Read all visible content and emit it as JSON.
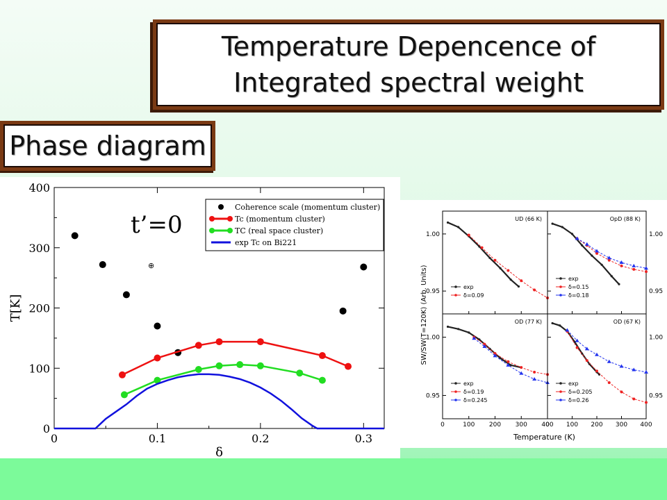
{
  "slide": {
    "title_line1": "Temperature Depencence of",
    "title_line2": "Integrated spectral weight",
    "phase_label": "Phase diagram"
  },
  "chart_data": [
    {
      "type": "scatter",
      "annotation": "t’=0",
      "xlabel": "δ",
      "ylabel": "T[K]",
      "xlim": [
        0,
        0.32
      ],
      "ylim": [
        0,
        400
      ],
      "xticks": [
        "0",
        "0.1",
        "0.2",
        "0.3"
      ],
      "xtick_values": [
        0,
        0.1,
        0.2,
        0.3
      ],
      "yticks": [
        "0",
        "100",
        "200",
        "300",
        "400"
      ],
      "ytick_values": [
        0,
        100,
        200,
        300,
        400
      ],
      "legend_position": "top-right",
      "series": [
        {
          "name": "Coherence scale (momentum cluster)",
          "style": "points",
          "color": "#000000",
          "x": [
            0.02,
            0.047,
            0.07,
            0.1,
            0.12,
            0.28,
            0.3
          ],
          "y": [
            320,
            272,
            222,
            170,
            126,
            195,
            268
          ]
        },
        {
          "name": "Tc (momentum cluster)",
          "style": "line-points",
          "color": "#ee1111",
          "x": [
            0.066,
            0.1,
            0.14,
            0.16,
            0.2,
            0.26,
            0.285
          ],
          "y": [
            89,
            117,
            138,
            144,
            144,
            121,
            103
          ]
        },
        {
          "name": "TC (real space cluster)",
          "style": "line-points",
          "color": "#22dd22",
          "x": [
            0.068,
            0.1,
            0.14,
            0.16,
            0.18,
            0.2,
            0.238,
            0.26
          ],
          "y": [
            56,
            80,
            98,
            104,
            106,
            104,
            92,
            80
          ]
        },
        {
          "name": "exp Tc on Bi221",
          "style": "line",
          "color": "#1111dd",
          "x": [
            0,
            0.04,
            0.045,
            0.05,
            0.06,
            0.07,
            0.08,
            0.09,
            0.1,
            0.11,
            0.12,
            0.13,
            0.14,
            0.15,
            0.16,
            0.17,
            0.18,
            0.19,
            0.2,
            0.21,
            0.22,
            0.23,
            0.24,
            0.25,
            0.255,
            0.26,
            0.32
          ],
          "y": [
            0,
            0,
            8,
            16,
            28,
            40,
            54,
            66,
            74,
            80,
            85,
            88,
            90,
            90,
            89,
            86,
            82,
            76,
            68,
            58,
            46,
            32,
            17,
            5,
            0,
            0,
            0
          ]
        }
      ]
    },
    {
      "type": "line",
      "ylabel": "SW/SW(T=120K) (Arb. Units)",
      "xlabel": "Temperature (K)",
      "xlim": [
        0,
        400
      ],
      "ylim": [
        0.93,
        1.02
      ],
      "xticks": [
        "0",
        "100",
        "200",
        "300",
        "400"
      ],
      "xtick_values": [
        0,
        100,
        200,
        300,
        400
      ],
      "yticks": [
        "0.95",
        "1.00"
      ],
      "ytick_values": [
        0.95,
        1.0
      ],
      "panels": [
        {
          "title": "UD (66 K)",
          "legend": [
            "exp",
            "δ=0.09"
          ],
          "series": [
            {
              "name": "exp",
              "color": "#222222",
              "x": [
                20,
                60,
                100,
                140,
                180,
                220,
                260,
                290
              ],
              "y": [
                1.01,
                1.006,
                0.998,
                0.989,
                0.979,
                0.97,
                0.96,
                0.954
              ]
            },
            {
              "name": "δ=0.09",
              "color": "#ee2222",
              "x": [
                100,
                150,
                200,
                250,
                300,
                350,
                400
              ],
              "y": [
                0.999,
                0.988,
                0.977,
                0.968,
                0.959,
                0.951,
                0.944
              ]
            }
          ]
        },
        {
          "title": "OpD (88 K)",
          "legend": [
            "exp",
            "δ=0.15",
            "δ=0.18"
          ],
          "series": [
            {
              "name": "exp",
              "color": "#222222",
              "x": [
                20,
                60,
                100,
                140,
                180,
                220,
                260,
                290
              ],
              "y": [
                1.009,
                1.006,
                1.0,
                0.99,
                0.981,
                0.973,
                0.963,
                0.956
              ]
            },
            {
              "name": "δ=0.15",
              "color": "#ee2222",
              "x": [
                120,
                160,
                200,
                250,
                300,
                350,
                400
              ],
              "y": [
                0.996,
                0.99,
                0.983,
                0.977,
                0.972,
                0.969,
                0.967
              ]
            },
            {
              "name": "δ=0.18",
              "color": "#2233ee",
              "x": [
                120,
                160,
                200,
                250,
                300,
                350,
                400
              ],
              "y": [
                0.996,
                0.991,
                0.985,
                0.979,
                0.975,
                0.972,
                0.97
              ]
            }
          ]
        },
        {
          "title": "OD (77 K)",
          "legend": [
            "exp",
            "δ=0.19",
            "δ=0.245"
          ],
          "series": [
            {
              "name": "exp",
              "color": "#222222",
              "x": [
                20,
                60,
                100,
                140,
                180,
                220,
                260,
                300
              ],
              "y": [
                1.009,
                1.007,
                1.004,
                0.998,
                0.99,
                0.982,
                0.976,
                0.974
              ]
            },
            {
              "name": "δ=0.19",
              "color": "#ee2222",
              "x": [
                120,
                160,
                200,
                250,
                300,
                350,
                400
              ],
              "y": [
                1.0,
                0.994,
                0.986,
                0.979,
                0.974,
                0.97,
                0.968
              ]
            },
            {
              "name": "δ=0.245",
              "color": "#2233ee",
              "x": [
                120,
                160,
                200,
                250,
                300,
                350,
                400
              ],
              "y": [
                0.999,
                0.992,
                0.984,
                0.976,
                0.969,
                0.964,
                0.961
              ]
            }
          ]
        },
        {
          "title": "OD (67 K)",
          "legend": [
            "exp",
            "δ=0.205",
            "δ=0.26"
          ],
          "series": [
            {
              "name": "exp",
              "color": "#222222",
              "x": [
                20,
                50,
                80,
                110,
                140,
                170,
                200,
                210
              ],
              "y": [
                1.012,
                1.01,
                1.005,
                0.996,
                0.986,
                0.977,
                0.97,
                0.968
              ]
            },
            {
              "name": "δ=0.205",
              "color": "#ee2222",
              "x": [
                80,
                120,
                160,
                200,
                250,
                300,
                350,
                400
              ],
              "y": [
                1.005,
                0.991,
                0.98,
                0.971,
                0.961,
                0.953,
                0.947,
                0.944
              ]
            },
            {
              "name": "δ=0.26",
              "color": "#2233ee",
              "x": [
                80,
                120,
                160,
                200,
                250,
                300,
                350,
                400
              ],
              "y": [
                1.006,
                0.997,
                0.99,
                0.985,
                0.979,
                0.975,
                0.972,
                0.97
              ]
            }
          ]
        }
      ]
    }
  ]
}
